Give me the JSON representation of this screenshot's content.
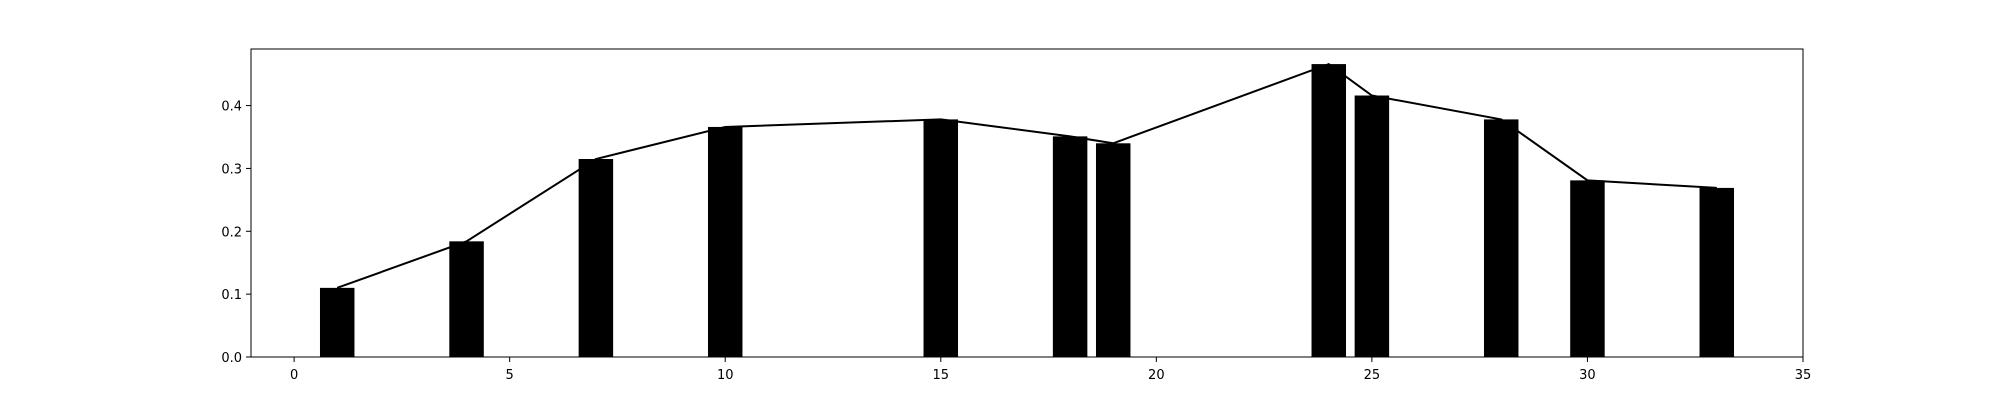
{
  "chart_data": {
    "type": "bar",
    "title": "",
    "xlabel": "",
    "ylabel": "",
    "xlim": [
      -1,
      35
    ],
    "ylim": [
      0,
      0.49
    ],
    "xticks": [
      0,
      5,
      10,
      15,
      20,
      25,
      30,
      35
    ],
    "yticks": [
      0.0,
      0.1,
      0.2,
      0.3,
      0.4
    ],
    "xtick_labels": [
      "0",
      "5",
      "10",
      "15",
      "20",
      "25",
      "30",
      "35"
    ],
    "ytick_labels": [
      "0.0",
      "0.1",
      "0.2",
      "0.3",
      "0.4"
    ],
    "bar_width": 0.8,
    "grid": false,
    "series": [
      {
        "kind": "bar",
        "color": "#000000",
        "x": [
          1,
          4,
          7,
          10,
          15,
          18,
          19,
          24,
          25,
          28,
          30,
          33
        ],
        "values": [
          0.11,
          0.184,
          0.315,
          0.366,
          0.378,
          0.351,
          0.34,
          0.466,
          0.416,
          0.378,
          0.281,
          0.269
        ]
      },
      {
        "kind": "line",
        "color": "#000000",
        "x": [
          1,
          4,
          7,
          10,
          15,
          18,
          19,
          24,
          25,
          28,
          30,
          33
        ],
        "values": [
          0.11,
          0.184,
          0.315,
          0.366,
          0.378,
          0.351,
          0.34,
          0.466,
          0.416,
          0.378,
          0.281,
          0.269
        ]
      }
    ]
  }
}
